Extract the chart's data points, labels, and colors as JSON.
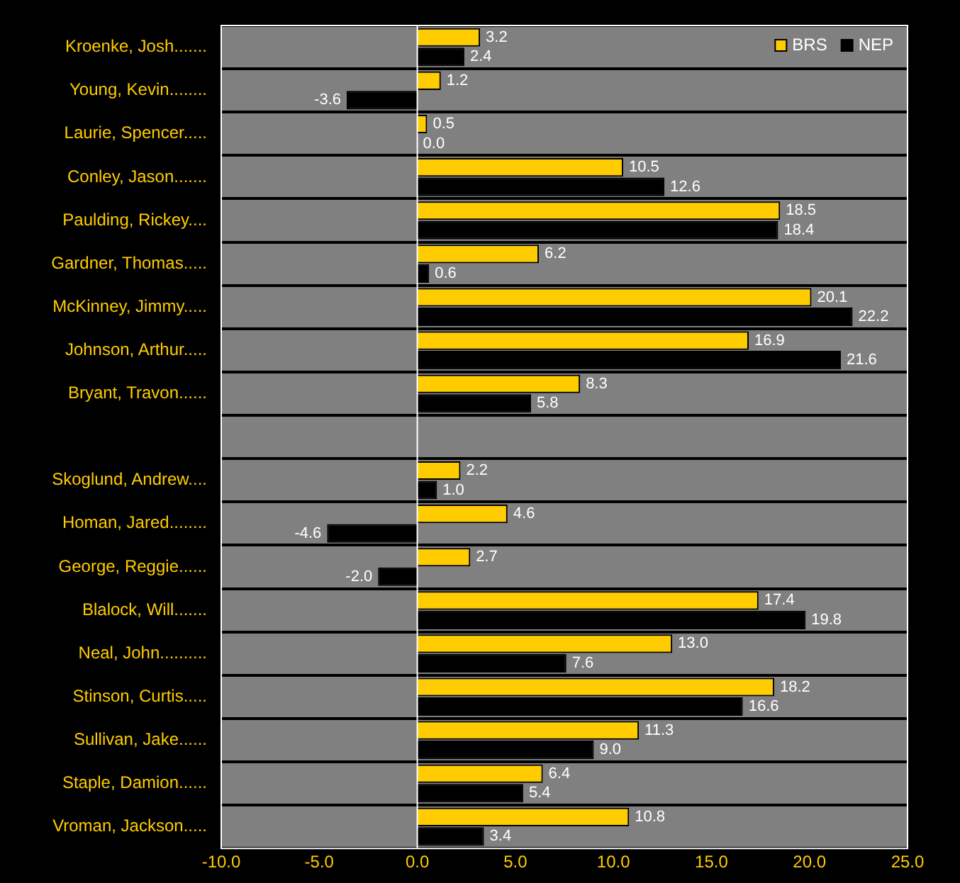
{
  "chart_data": {
    "type": "bar",
    "orientation": "horizontal",
    "categories": [
      "Kroenke, Josh.......",
      "Young, Kevin........",
      "Laurie, Spencer.....",
      "Conley, Jason.......",
      "Paulding, Rickey....",
      "Gardner, Thomas.....",
      "McKinney, Jimmy.....",
      "Johnson, Arthur.....",
      "Bryant, Travon......",
      null,
      "Skoglund, Andrew....",
      "Homan, Jared........",
      "George, Reggie......",
      "Blalock, Will.......",
      "Neal, John..........",
      "Stinson, Curtis.....",
      "Sullivan, Jake......",
      "Staple, Damion......",
      "Vroman, Jackson....."
    ],
    "series": [
      {
        "name": "BRS",
        "color": "#ffcc00",
        "values": [
          3.2,
          1.2,
          0.5,
          10.5,
          18.5,
          6.2,
          20.1,
          16.9,
          8.3,
          null,
          2.2,
          4.6,
          2.7,
          17.4,
          13.0,
          18.2,
          11.3,
          6.4,
          10.8
        ],
        "value_labels": [
          "3.2",
          "1.2",
          "0.5",
          "10.5",
          "18.5",
          "6.2",
          "20.1",
          "16.9",
          "8.3",
          null,
          "2.2",
          "4.6",
          "2.7",
          "17.4",
          "13.0",
          "18.2",
          "11.3",
          "6.4",
          "10.8"
        ]
      },
      {
        "name": "NEP",
        "color": "#000000",
        "values": [
          2.4,
          -3.6,
          0.0,
          12.6,
          18.4,
          0.6,
          22.2,
          21.6,
          5.8,
          null,
          1.0,
          -4.6,
          -2.0,
          19.8,
          7.6,
          16.6,
          9.0,
          5.4,
          3.4
        ],
        "value_labels": [
          "2.4",
          "-3.6",
          "0.0",
          "12.6",
          "18.4",
          "0.6",
          "22.2",
          "21.6",
          "5.8",
          null,
          "1.0",
          "-4.6",
          "-2.0",
          "19.8",
          "7.6",
          "16.6",
          "9.0",
          "5.4",
          "3.4"
        ]
      }
    ],
    "xlim": [
      -10,
      25
    ],
    "xticks": [
      {
        "value": -10,
        "label": "-10.0"
      },
      {
        "value": -5,
        "label": "-5.0"
      },
      {
        "value": 0,
        "label": "0.0"
      },
      {
        "value": 5,
        "label": "5.0"
      },
      {
        "value": 10,
        "label": "10.0"
      },
      {
        "value": 15,
        "label": "15.0"
      },
      {
        "value": 20,
        "label": "20.0"
      },
      {
        "value": 25,
        "label": "25.0"
      }
    ],
    "ref_lines": [
      {
        "axis": "x",
        "value": 0,
        "color": "#ffffff"
      }
    ],
    "grid": "y",
    "legend": "top right"
  }
}
